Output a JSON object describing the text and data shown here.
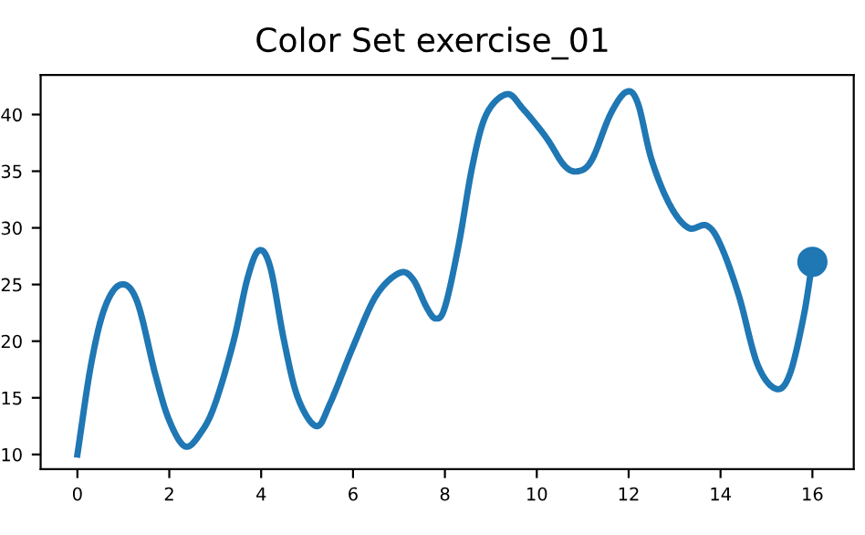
{
  "chart_data": {
    "type": "line",
    "title": "Color Set exercise_01",
    "series": [
      {
        "color": "#1f77b4",
        "marker": "none",
        "x": [
          0,
          0.3,
          0.6,
          0.95,
          1.3,
          1.7,
          2.0,
          2.35,
          2.7,
          3.0,
          3.4,
          3.7,
          3.95,
          4.2,
          4.5,
          4.8,
          5.2,
          5.5,
          6.0,
          6.5,
          7.0,
          7.3,
          7.6,
          7.8,
          8.0,
          8.3,
          8.6,
          8.9,
          9.35,
          9.7,
          10.2,
          10.6,
          10.9,
          11.2,
          11.6,
          11.95,
          12.2,
          12.5,
          12.9,
          13.3,
          13.7,
          14.0,
          14.4,
          14.8,
          15.2,
          15.5,
          15.8,
          16
        ],
        "values": [
          10,
          18,
          23,
          25,
          23.5,
          17,
          13,
          10.7,
          12,
          14.5,
          20,
          25.5,
          28,
          26.5,
          20,
          15,
          12.5,
          14.5,
          19.5,
          24,
          26,
          25.5,
          23,
          22,
          23,
          28.5,
          35.5,
          40,
          41.8,
          40.5,
          38,
          35.5,
          35,
          36,
          40,
          42,
          41,
          36,
          32,
          30,
          30.2,
          28.5,
          24,
          18,
          15.8,
          17,
          22,
          27
        ]
      },
      {
        "type": "scatter",
        "color": "#1f77b4",
        "marker": "circle",
        "x": [
          16
        ],
        "values": [
          27
        ]
      }
    ],
    "xlim": [
      -0.8,
      16.9
    ],
    "ylim": [
      8.7,
      43.5
    ],
    "xticks": [
      0,
      2,
      4,
      6,
      8,
      10,
      12,
      14,
      16
    ],
    "yticks": [
      10,
      15,
      20,
      25,
      30,
      35,
      40
    ],
    "grid": false,
    "legend": false
  }
}
